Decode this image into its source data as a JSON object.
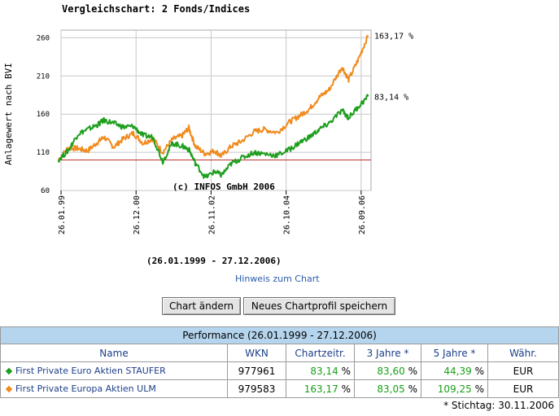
{
  "chart": {
    "title": "Vergleichschart: 2 Fonds/Indices",
    "watermark": "(c) INFOS GmbH 2006",
    "date_range": "(26.01.1999 - 27.12.2006)",
    "hint_link": "Hinweis zum Chart"
  },
  "buttons": {
    "change_label": "Chart ändern",
    "save_label": "Neues Chartprofil speichern"
  },
  "performance": {
    "caption": "Performance (26.01.1999 - 27.12.2006)",
    "headers": [
      "Name",
      "WKN",
      "Chartzeitr.",
      "3 Jahre *",
      "5 Jahre *",
      "Währ."
    ],
    "rows": [
      {
        "name": "First Private Euro Aktien STAUFER",
        "wkn": "977961",
        "chart": "83,14",
        "y3": "83,60",
        "y5": "44,39",
        "pct": "%",
        "currency": "EUR",
        "color": "#1e9e1e"
      },
      {
        "name": "First Private Europa Aktien ULM",
        "wkn": "979583",
        "chart": "163,17",
        "y3": "83,05",
        "y5": "109,25",
        "pct": "%",
        "currency": "EUR",
        "color": "#f08a1c"
      }
    ],
    "footnote": "* Stichtag: 30.11.2006"
  },
  "chart_data": {
    "type": "line",
    "title": "Vergleichschart: 2 Fonds/Indices",
    "ylabel": "Anlagewert nach BVI",
    "ylim": [
      60,
      270
    ],
    "yticks": [
      60,
      110,
      160,
      210,
      260
    ],
    "xlim": [
      "26.01.1999",
      "27.12.2006"
    ],
    "xticks": [
      "26.01.99",
      "26.12.00",
      "26.11.02",
      "26.10.04",
      "26.09.06"
    ],
    "reference_line": 100,
    "reference_color": "#c03030",
    "grid": true,
    "series": [
      {
        "color": "#f08a1c",
        "end_label": "163,17 %",
        "points": [
          [
            "1999-01",
            "100"
          ],
          [
            "1999-04",
            "116"
          ],
          [
            "1999-07",
            "115"
          ],
          [
            "1999-10",
            "112"
          ],
          [
            "2000-01",
            "123"
          ],
          [
            "2000-03",
            "130"
          ],
          [
            "2000-06",
            "117"
          ],
          [
            "2000-09",
            "128"
          ],
          [
            "2000-12",
            "135"
          ],
          [
            "2001-03",
            "122"
          ],
          [
            "2001-06",
            "128"
          ],
          [
            "2001-09",
            "110"
          ],
          [
            "2001-12",
            "127"
          ],
          [
            "2002-03",
            "132"
          ],
          [
            "2002-05",
            "142"
          ],
          [
            "2002-07",
            "118"
          ],
          [
            "2002-10",
            "108"
          ],
          [
            "2003-01",
            "112"
          ],
          [
            "2003-03",
            "105"
          ],
          [
            "2003-06",
            "118"
          ],
          [
            "2003-09",
            "124"
          ],
          [
            "2004-01",
            "137"
          ],
          [
            "2004-04",
            "140"
          ],
          [
            "2004-08",
            "136"
          ],
          [
            "2004-12",
            "150"
          ],
          [
            "2005-03",
            "158"
          ],
          [
            "2005-06",
            "167"
          ],
          [
            "2005-09",
            "182"
          ],
          [
            "2005-12",
            "192"
          ],
          [
            "2006-04",
            "222"
          ],
          [
            "2006-06",
            "205"
          ],
          [
            "2006-09",
            "232"
          ],
          [
            "2006-12",
            "263.17"
          ]
        ]
      },
      {
        "color": "#1e9e1e",
        "end_label": "83,14 %",
        "points": [
          [
            "1999-01",
            "100"
          ],
          [
            "1999-04",
            "112"
          ],
          [
            "1999-07",
            "134"
          ],
          [
            "1999-10",
            "140"
          ],
          [
            "2000-01",
            "146"
          ],
          [
            "2000-03",
            "152"
          ],
          [
            "2000-06",
            "148"
          ],
          [
            "2000-09",
            "143"
          ],
          [
            "2000-12",
            "144"
          ],
          [
            "2001-03",
            "132"
          ],
          [
            "2001-06",
            "130"
          ],
          [
            "2001-09",
            "98"
          ],
          [
            "2001-12",
            "122"
          ],
          [
            "2002-03",
            "118"
          ],
          [
            "2002-05",
            "114"
          ],
          [
            "2002-07",
            "96"
          ],
          [
            "2002-10",
            "77"
          ],
          [
            "2003-01",
            "85"
          ],
          [
            "2003-03",
            "80"
          ],
          [
            "2003-06",
            "95"
          ],
          [
            "2003-09",
            "102"
          ],
          [
            "2004-01",
            "110"
          ],
          [
            "2004-04",
            "108"
          ],
          [
            "2004-08",
            "106"
          ],
          [
            "2004-12",
            "114"
          ],
          [
            "2005-03",
            "123"
          ],
          [
            "2005-06",
            "130"
          ],
          [
            "2005-09",
            "140"
          ],
          [
            "2005-12",
            "148"
          ],
          [
            "2006-04",
            "165"
          ],
          [
            "2006-06",
            "155"
          ],
          [
            "2006-09",
            "170"
          ],
          [
            "2006-12",
            "183.14"
          ]
        ]
      }
    ]
  }
}
